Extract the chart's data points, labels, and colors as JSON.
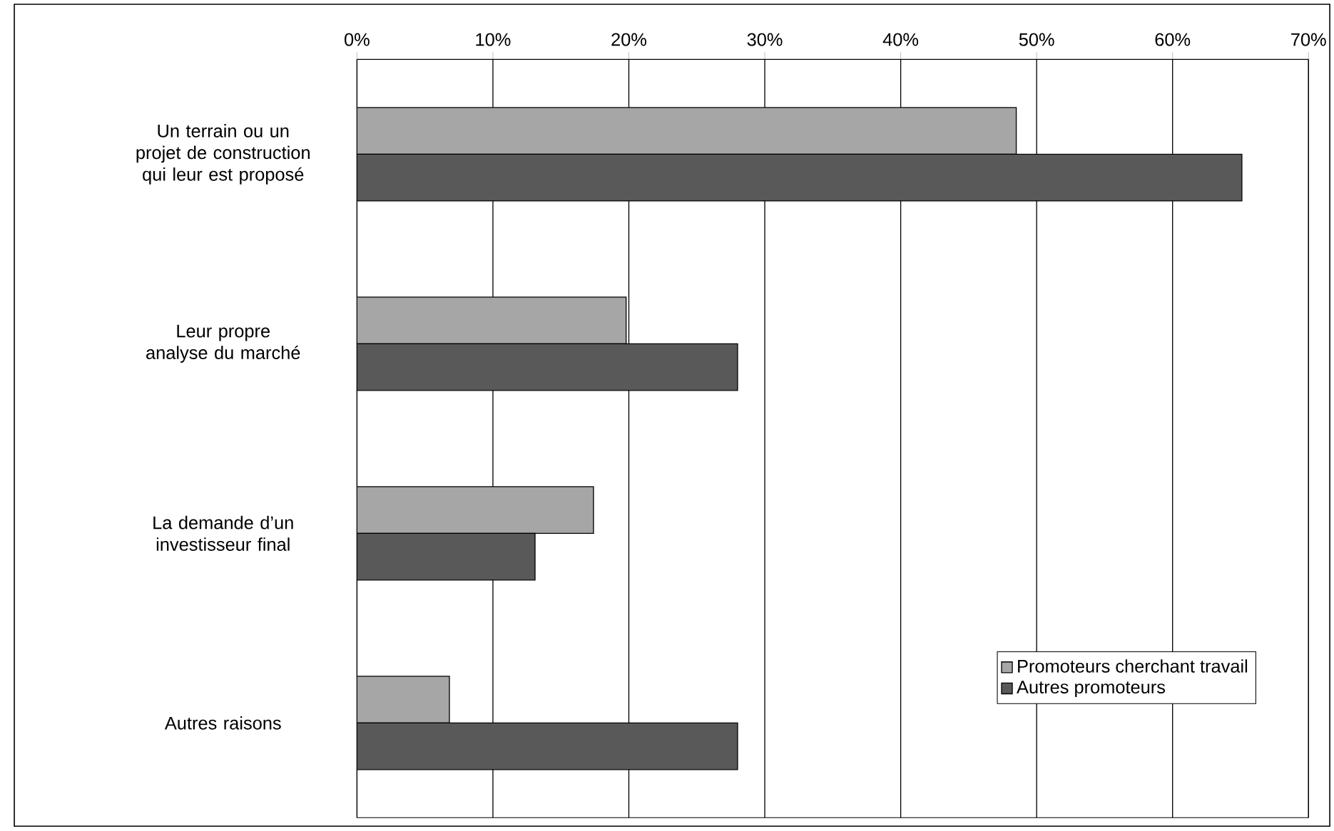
{
  "chart_data": {
    "type": "bar",
    "orientation": "horizontal",
    "categories": [
      "Un terrain ou un projet de construction qui leur est proposé",
      "Leur propre analyse du marché",
      "La demande d’un investisseur final",
      "Autres raisons"
    ],
    "series": [
      {
        "name": "Promoteurs cherchant travail",
        "color": "#a6a6a6",
        "values": [
          48.5,
          19.8,
          17.4,
          6.8
        ]
      },
      {
        "name": "Autres promoteurs",
        "color": "#595959",
        "values": [
          65.1,
          28.0,
          13.1,
          28.0
        ]
      }
    ],
    "xlim": [
      0,
      70
    ],
    "xticks": [
      {
        "value": 0,
        "label": "0%"
      },
      {
        "value": 10,
        "label": "10%"
      },
      {
        "value": 20,
        "label": "20%"
      },
      {
        "value": 30,
        "label": "30%"
      },
      {
        "value": 40,
        "label": "40%"
      },
      {
        "value": 50,
        "label": "50%"
      },
      {
        "value": 60,
        "label": "60%"
      },
      {
        "value": 70,
        "label": "70%"
      }
    ],
    "grid": "x",
    "legend": "bottom right"
  }
}
